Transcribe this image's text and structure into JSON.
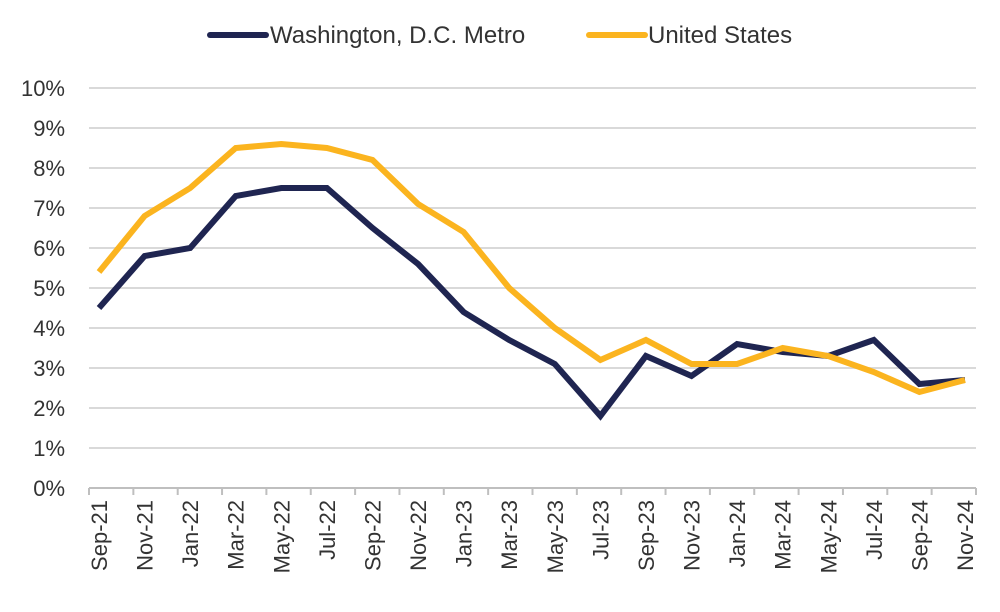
{
  "chart_data": {
    "type": "line",
    "title": "",
    "xlabel": "",
    "ylabel": "",
    "ylim": [
      0,
      10
    ],
    "y_ticks": [
      "0%",
      "1%",
      "2%",
      "3%",
      "4%",
      "5%",
      "6%",
      "7%",
      "8%",
      "9%",
      "10%"
    ],
    "grid": true,
    "legend_position": "top-center",
    "x_tick_labels": [
      "Sep-21",
      "Nov-21",
      "Jan-22",
      "Mar-22",
      "May-22",
      "Jul-22",
      "Sep-22",
      "Nov-22",
      "Jan-23",
      "Mar-23",
      "May-23",
      "Jul-23",
      "Sep-23",
      "Nov-23",
      "Jan-24",
      "Mar-24",
      "May-24",
      "Jul-24",
      "Sep-24",
      "Nov-24"
    ],
    "x_values": [
      "Sep-21",
      "Nov-21",
      "Jan-22",
      "Mar-22",
      "May-22",
      "Jul-22",
      "Sep-22",
      "Nov-22",
      "Jan-23",
      "Mar-23",
      "May-23",
      "Jul-23",
      "Sep-23",
      "Nov-23",
      "Jan-24",
      "Mar-24",
      "May-24",
      "Jul-24",
      "Sep-24",
      "Nov-24"
    ],
    "series": [
      {
        "name": "Washington, D.C. Metro",
        "color": "#1f2551",
        "values": [
          4.5,
          5.8,
          6.0,
          7.3,
          7.5,
          7.5,
          6.5,
          5.6,
          4.4,
          3.7,
          3.1,
          1.8,
          3.3,
          2.8,
          3.6,
          3.4,
          3.3,
          3.7,
          2.6,
          2.7
        ]
      },
      {
        "name": "United States",
        "color": "#fbb41f",
        "values": [
          5.4,
          6.8,
          7.5,
          8.5,
          8.6,
          8.5,
          8.2,
          7.1,
          6.4,
          5.0,
          4.0,
          3.2,
          3.7,
          3.1,
          3.1,
          3.5,
          3.3,
          2.9,
          2.4,
          2.7
        ]
      }
    ]
  },
  "colors": {
    "grid": "#d9d9d9",
    "axis": "#bfbfbf",
    "text": "#333333"
  }
}
